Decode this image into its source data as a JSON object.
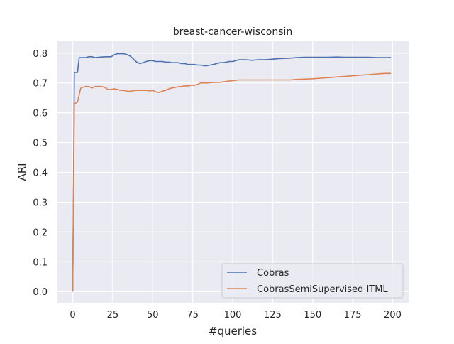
{
  "chart_data": {
    "type": "line",
    "title": "breast-cancer-wisconsin",
    "xlabel": "#queries",
    "ylabel": "ARI",
    "xlim": [
      -10,
      210
    ],
    "ylim": [
      -0.04,
      0.84
    ],
    "xticks": [
      0,
      25,
      50,
      75,
      100,
      125,
      150,
      175,
      200
    ],
    "xtick_labels": [
      "0",
      "25",
      "50",
      "75",
      "100",
      "125",
      "150",
      "175",
      "200"
    ],
    "yticks": [
      0.0,
      0.1,
      0.2,
      0.3,
      0.4,
      0.5,
      0.6,
      0.7,
      0.8
    ],
    "ytick_labels": [
      "0.0",
      "0.1",
      "0.2",
      "0.3",
      "0.4",
      "0.5",
      "0.6",
      "0.7",
      "0.8"
    ],
    "grid": true,
    "legend_position": "lower-right",
    "background": "#eaeaf2",
    "series": [
      {
        "name": "Cobras",
        "color": "#4c72b0",
        "x": [
          0,
          1,
          2,
          3,
          4,
          5,
          8,
          10,
          12,
          14,
          20,
          24,
          26,
          28,
          30,
          32,
          34,
          36,
          38,
          40,
          42,
          44,
          46,
          48,
          50,
          52,
          54,
          56,
          58,
          60,
          62,
          64,
          66,
          68,
          70,
          72,
          74,
          76,
          78,
          80,
          82,
          84,
          86,
          88,
          90,
          92,
          94,
          96,
          98,
          100,
          104,
          108,
          112,
          116,
          120,
          125,
          130,
          135,
          140,
          145,
          150,
          155,
          160,
          165,
          170,
          175,
          180,
          185,
          190,
          195,
          199
        ],
        "y": [
          0.0,
          0.735,
          0.735,
          0.735,
          0.785,
          0.785,
          0.785,
          0.788,
          0.788,
          0.785,
          0.788,
          0.788,
          0.795,
          0.798,
          0.798,
          0.798,
          0.795,
          0.79,
          0.78,
          0.77,
          0.765,
          0.768,
          0.772,
          0.775,
          0.775,
          0.772,
          0.772,
          0.772,
          0.77,
          0.77,
          0.768,
          0.768,
          0.768,
          0.765,
          0.765,
          0.762,
          0.762,
          0.762,
          0.76,
          0.76,
          0.758,
          0.758,
          0.76,
          0.762,
          0.765,
          0.768,
          0.768,
          0.77,
          0.772,
          0.772,
          0.778,
          0.778,
          0.776,
          0.778,
          0.778,
          0.78,
          0.782,
          0.783,
          0.785,
          0.786,
          0.786,
          0.786,
          0.786,
          0.787,
          0.786,
          0.786,
          0.786,
          0.786,
          0.785,
          0.785,
          0.785
        ]
      },
      {
        "name": "CobrasSemiSupervised ITML",
        "color": "#dd8452",
        "x": [
          0,
          1,
          2,
          3,
          4,
          5,
          6,
          8,
          10,
          12,
          14,
          16,
          18,
          20,
          22,
          24,
          26,
          28,
          30,
          32,
          34,
          36,
          38,
          40,
          42,
          44,
          46,
          48,
          50,
          52,
          54,
          56,
          58,
          60,
          62,
          64,
          66,
          68,
          70,
          72,
          74,
          76,
          78,
          80,
          84,
          88,
          92,
          96,
          100,
          104,
          108,
          112,
          116,
          120,
          124,
          128,
          132,
          136,
          140,
          145,
          150,
          155,
          160,
          165,
          170,
          175,
          180,
          185,
          190,
          195,
          199
        ],
        "y": [
          0.0,
          0.63,
          0.633,
          0.636,
          0.66,
          0.682,
          0.685,
          0.688,
          0.688,
          0.683,
          0.688,
          0.688,
          0.688,
          0.685,
          0.678,
          0.678,
          0.68,
          0.678,
          0.675,
          0.675,
          0.672,
          0.672,
          0.674,
          0.675,
          0.675,
          0.675,
          0.675,
          0.673,
          0.675,
          0.67,
          0.668,
          0.672,
          0.675,
          0.68,
          0.683,
          0.685,
          0.687,
          0.688,
          0.69,
          0.69,
          0.692,
          0.692,
          0.695,
          0.7,
          0.7,
          0.702,
          0.702,
          0.705,
          0.708,
          0.71,
          0.71,
          0.71,
          0.71,
          0.71,
          0.71,
          0.71,
          0.71,
          0.71,
          0.712,
          0.713,
          0.714,
          0.716,
          0.718,
          0.72,
          0.722,
          0.724,
          0.726,
          0.728,
          0.73,
          0.732,
          0.732
        ]
      }
    ]
  }
}
